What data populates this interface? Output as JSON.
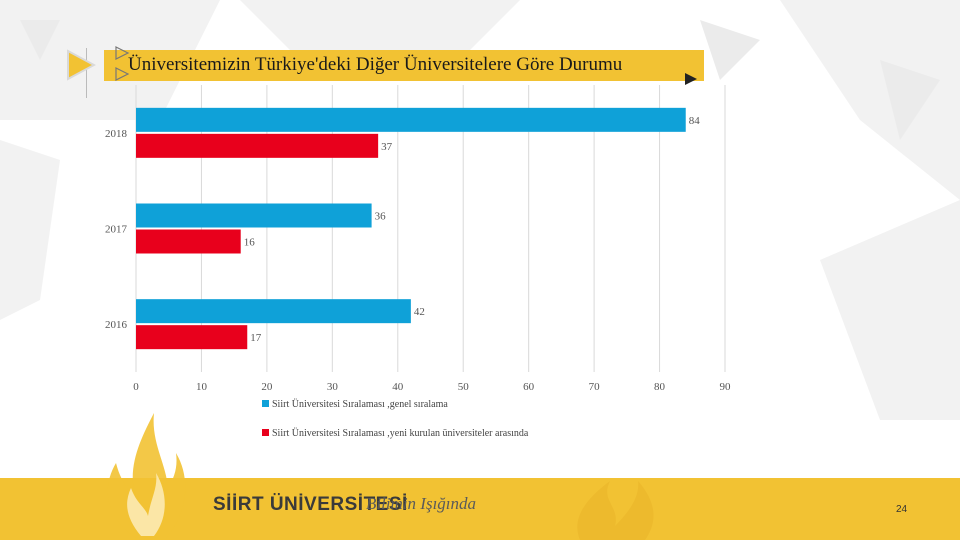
{
  "title": "Üniversitemizin Türkiye'deki Diğer Üniversitelere Göre Durumu",
  "footer": {
    "brand": "SİİRT ÜNİVERSİTESİ",
    "tagline": "Bilimin Işığında",
    "page_number": "24"
  },
  "colors": {
    "accent": "#f2c233",
    "series1": "#0fa1d8",
    "series2": "#e8001c"
  },
  "chart_data": {
    "type": "bar",
    "orientation": "horizontal",
    "categories": [
      "2018",
      "2017",
      "2016"
    ],
    "series": [
      {
        "name": "Siirt Üniversitesi Sıralaması ,genel sıralama",
        "values": [
          84,
          36,
          42
        ],
        "color": "#0fa1d8"
      },
      {
        "name": "Siirt Üniversitesi Sıralaması ,yeni kurulan üniversiteler arasında",
        "values": [
          37,
          16,
          17
        ],
        "color": "#e8001c"
      }
    ],
    "xlim": [
      0,
      90
    ],
    "xticks": [
      "0",
      "10",
      "20",
      "30",
      "40",
      "50",
      "60",
      "70",
      "80",
      "90"
    ],
    "grid": true,
    "legend": "bottom"
  }
}
